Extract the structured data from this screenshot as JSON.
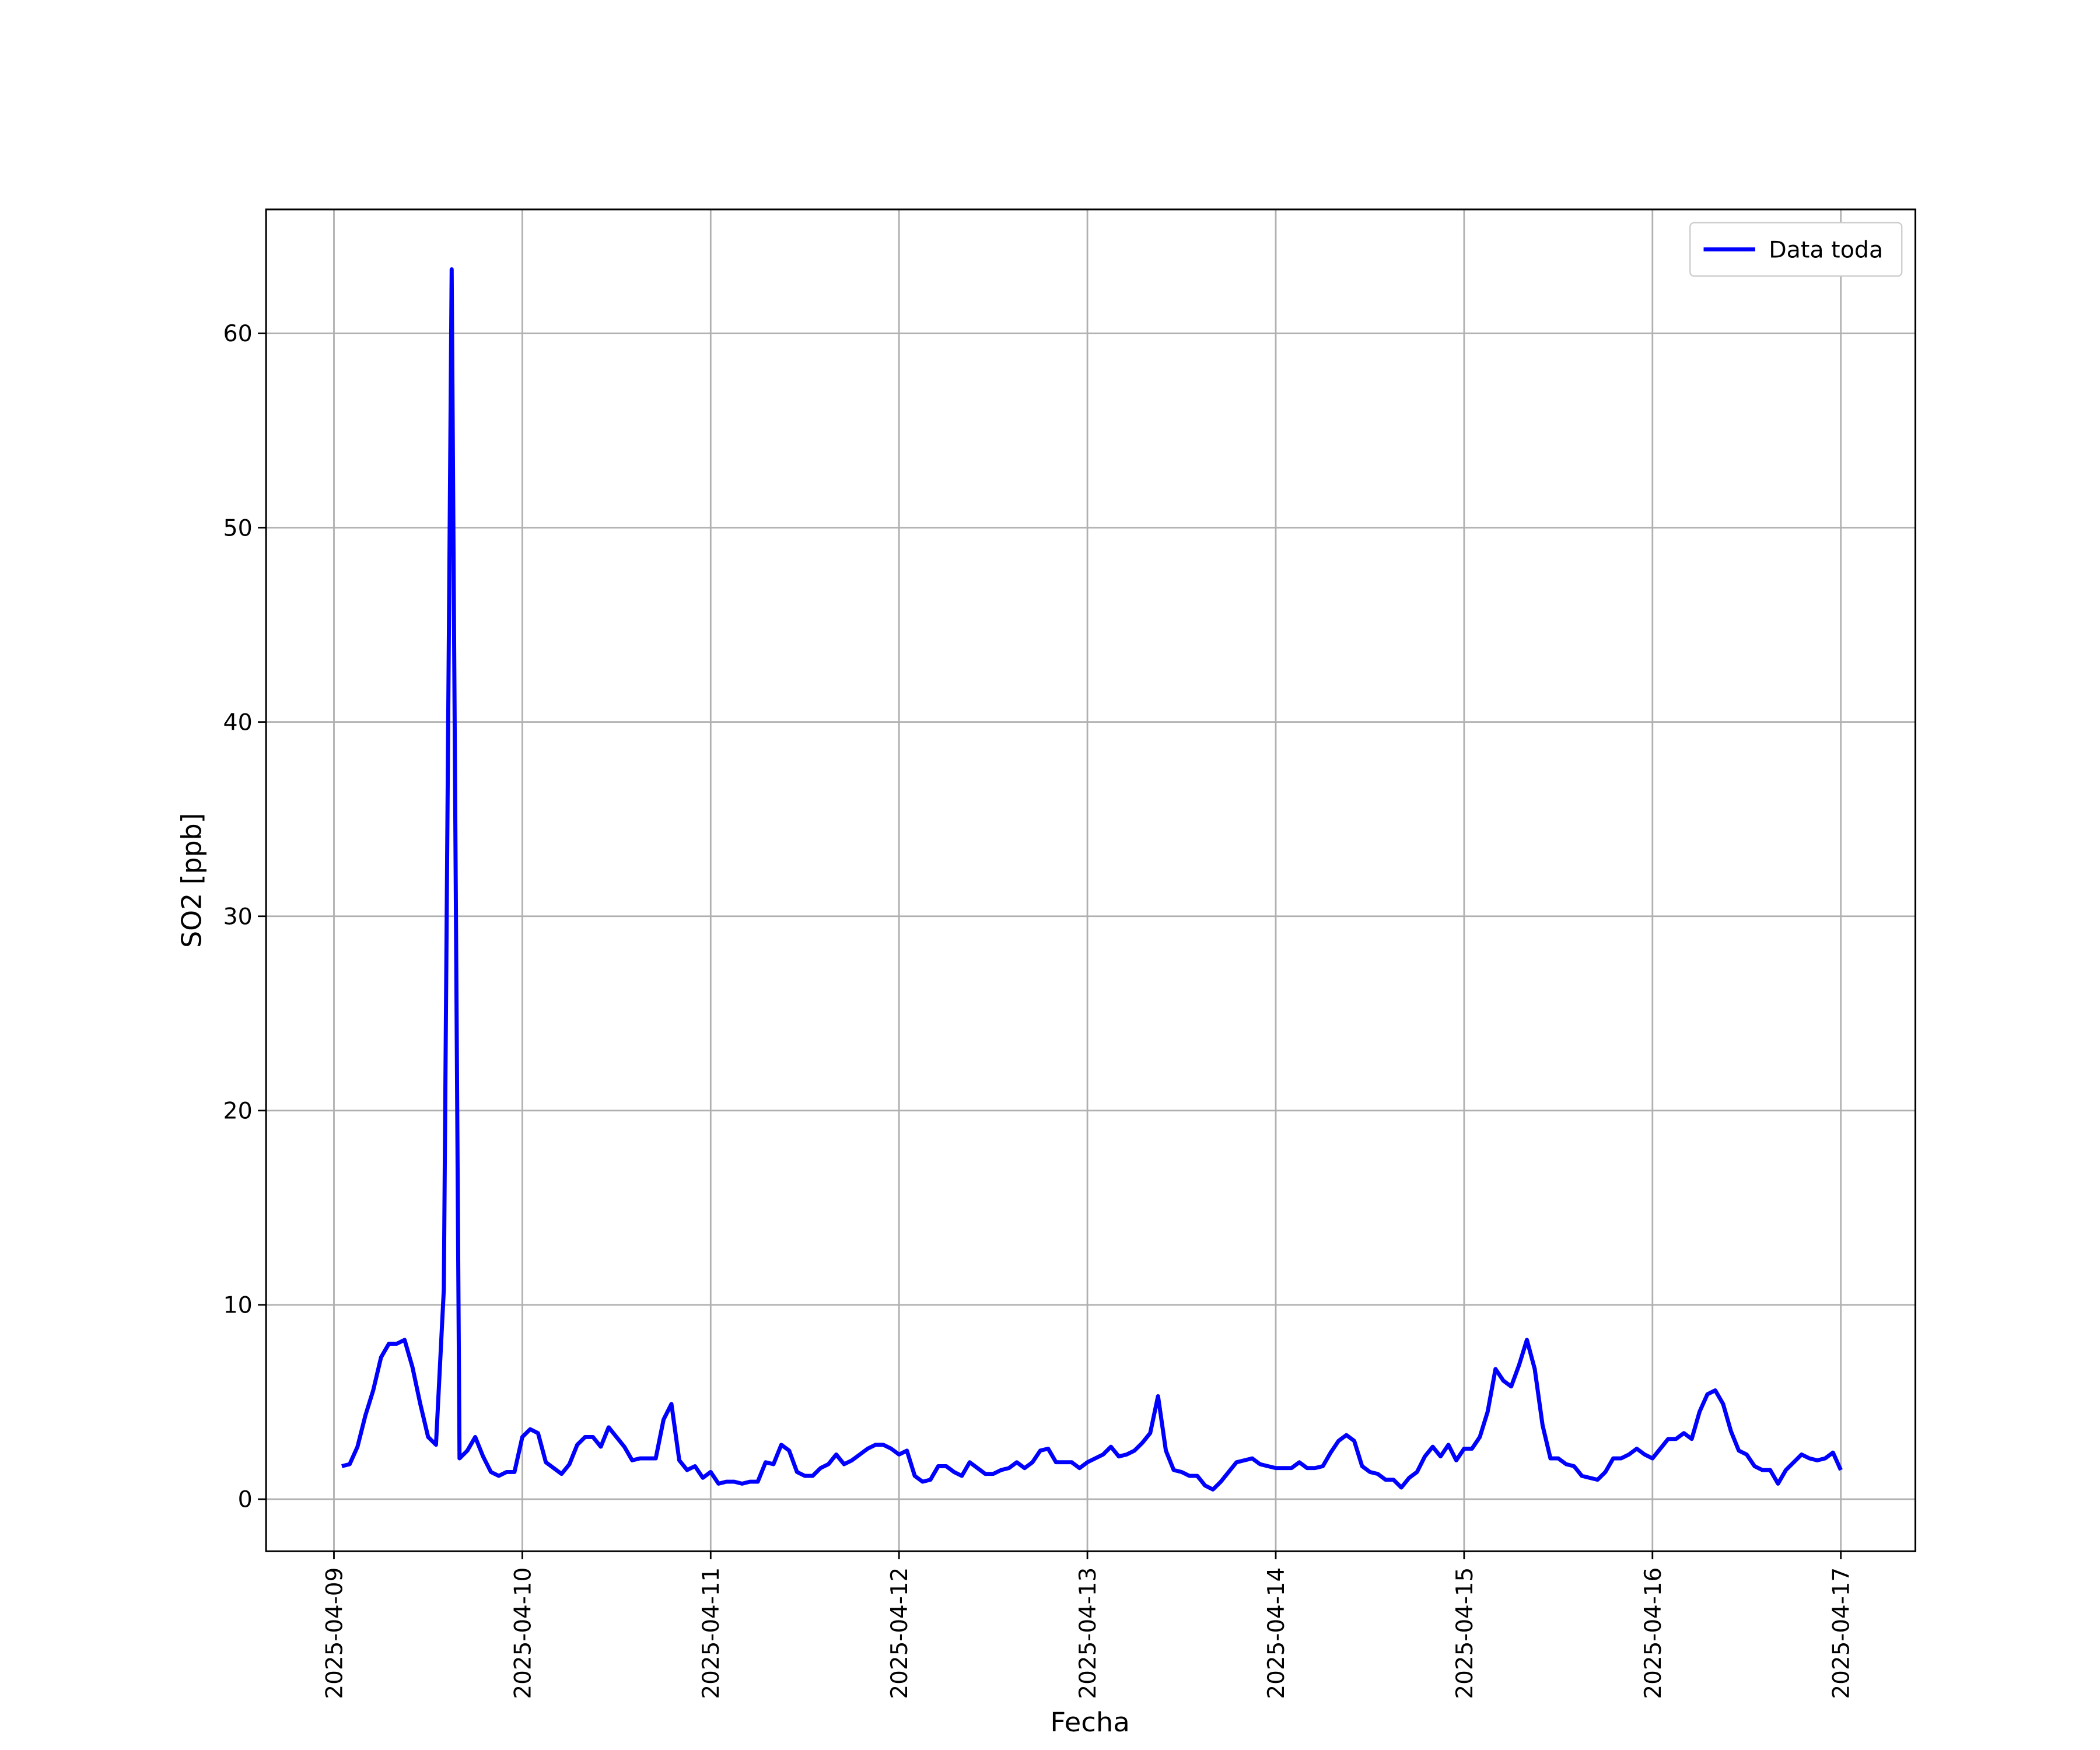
{
  "chart_data": {
    "type": "line",
    "xlabel": "Fecha",
    "ylabel": "SO2 [ppb]",
    "x": [
      "2025-04-09 01:00",
      "2025-04-09 02:00",
      "2025-04-09 03:00",
      "2025-04-09 04:00",
      "2025-04-09 05:00",
      "2025-04-09 06:00",
      "2025-04-09 07:00",
      "2025-04-09 08:00",
      "2025-04-09 09:00",
      "2025-04-09 10:00",
      "2025-04-09 11:00",
      "2025-04-09 12:00",
      "2025-04-09 13:00",
      "2025-04-09 14:00",
      "2025-04-09 15:00",
      "2025-04-09 16:00",
      "2025-04-09 17:00",
      "2025-04-09 18:00",
      "2025-04-09 19:00",
      "2025-04-09 20:00",
      "2025-04-09 21:00",
      "2025-04-09 22:00",
      "2025-04-09 23:00",
      "2025-04-10 00:00",
      "2025-04-10 01:00",
      "2025-04-10 02:00",
      "2025-04-10 03:00",
      "2025-04-10 04:00",
      "2025-04-10 05:00",
      "2025-04-10 06:00",
      "2025-04-10 07:00",
      "2025-04-10 08:00",
      "2025-04-10 09:00",
      "2025-04-10 10:00",
      "2025-04-10 11:00",
      "2025-04-10 12:00",
      "2025-04-10 13:00",
      "2025-04-10 14:00",
      "2025-04-10 15:00",
      "2025-04-10 16:00",
      "2025-04-10 17:00",
      "2025-04-10 18:00",
      "2025-04-10 19:00",
      "2025-04-10 20:00",
      "2025-04-10 21:00",
      "2025-04-10 22:00",
      "2025-04-10 23:00",
      "2025-04-11 00:00",
      "2025-04-11 01:00",
      "2025-04-11 02:00",
      "2025-04-11 03:00",
      "2025-04-11 04:00",
      "2025-04-11 05:00",
      "2025-04-11 06:00",
      "2025-04-11 07:00",
      "2025-04-11 08:00",
      "2025-04-11 09:00",
      "2025-04-11 10:00",
      "2025-04-11 11:00",
      "2025-04-11 12:00",
      "2025-04-11 13:00",
      "2025-04-11 14:00",
      "2025-04-11 15:00",
      "2025-04-11 16:00",
      "2025-04-11 17:00",
      "2025-04-11 18:00",
      "2025-04-11 19:00",
      "2025-04-11 20:00",
      "2025-04-11 21:00",
      "2025-04-11 22:00",
      "2025-04-11 23:00",
      "2025-04-12 00:00",
      "2025-04-12 01:00",
      "2025-04-12 02:00",
      "2025-04-12 03:00",
      "2025-04-12 04:00",
      "2025-04-12 05:00",
      "2025-04-12 06:00",
      "2025-04-12 07:00",
      "2025-04-12 08:00",
      "2025-04-12 09:00",
      "2025-04-12 10:00",
      "2025-04-12 11:00",
      "2025-04-12 12:00",
      "2025-04-12 13:00",
      "2025-04-12 14:00",
      "2025-04-12 15:00",
      "2025-04-12 16:00",
      "2025-04-12 17:00",
      "2025-04-12 18:00",
      "2025-04-12 19:00",
      "2025-04-12 20:00",
      "2025-04-12 21:00",
      "2025-04-12 22:00",
      "2025-04-12 23:00",
      "2025-04-13 00:00",
      "2025-04-13 01:00",
      "2025-04-13 02:00",
      "2025-04-13 03:00",
      "2025-04-13 04:00",
      "2025-04-13 05:00",
      "2025-04-13 06:00",
      "2025-04-13 07:00",
      "2025-04-13 08:00",
      "2025-04-13 09:00",
      "2025-04-13 10:00",
      "2025-04-13 11:00",
      "2025-04-13 12:00",
      "2025-04-13 13:00",
      "2025-04-13 14:00",
      "2025-04-13 15:00",
      "2025-04-13 16:00",
      "2025-04-13 17:00",
      "2025-04-13 18:00",
      "2025-04-13 19:00",
      "2025-04-13 20:00",
      "2025-04-13 21:00",
      "2025-04-13 22:00",
      "2025-04-13 23:00",
      "2025-04-14 00:00",
      "2025-04-14 01:00",
      "2025-04-14 02:00",
      "2025-04-14 03:00",
      "2025-04-14 04:00",
      "2025-04-14 05:00",
      "2025-04-14 06:00",
      "2025-04-14 07:00",
      "2025-04-14 08:00",
      "2025-04-14 09:00",
      "2025-04-14 10:00",
      "2025-04-14 11:00",
      "2025-04-14 12:00",
      "2025-04-14 13:00",
      "2025-04-14 14:00",
      "2025-04-14 15:00",
      "2025-04-14 16:00",
      "2025-04-14 17:00",
      "2025-04-14 18:00",
      "2025-04-14 19:00",
      "2025-04-14 20:00",
      "2025-04-14 21:00",
      "2025-04-14 22:00",
      "2025-04-14 23:00",
      "2025-04-15 00:00",
      "2025-04-15 01:00",
      "2025-04-15 02:00",
      "2025-04-15 03:00",
      "2025-04-15 04:00",
      "2025-04-15 05:00",
      "2025-04-15 06:00",
      "2025-04-15 07:00",
      "2025-04-15 08:00",
      "2025-04-15 09:00",
      "2025-04-15 10:00",
      "2025-04-15 11:00",
      "2025-04-15 12:00",
      "2025-04-15 13:00",
      "2025-04-15 14:00",
      "2025-04-15 15:00",
      "2025-04-15 16:00",
      "2025-04-15 17:00",
      "2025-04-15 18:00",
      "2025-04-15 19:00",
      "2025-04-15 20:00",
      "2025-04-15 21:00",
      "2025-04-15 22:00",
      "2025-04-15 23:00",
      "2025-04-16 00:00",
      "2025-04-16 01:00",
      "2025-04-16 02:00",
      "2025-04-16 03:00",
      "2025-04-16 04:00",
      "2025-04-16 05:00",
      "2025-04-16 06:00",
      "2025-04-16 07:00",
      "2025-04-16 08:00",
      "2025-04-16 09:00",
      "2025-04-16 10:00",
      "2025-04-16 11:00",
      "2025-04-16 12:00",
      "2025-04-16 13:00",
      "2025-04-16 14:00",
      "2025-04-16 15:00",
      "2025-04-16 16:00",
      "2025-04-16 17:00",
      "2025-04-16 18:00",
      "2025-04-16 19:00",
      "2025-04-16 20:00",
      "2025-04-16 21:00",
      "2025-04-16 22:00",
      "2025-04-16 23:00",
      "2025-04-17 00:00"
    ],
    "series": [
      {
        "name": "Data toda",
        "color": "#0000ff",
        "values": [
          1.7,
          1.8,
          2.7,
          4.3,
          5.6,
          7.3,
          8.0,
          8.0,
          8.2,
          6.8,
          4.9,
          3.2,
          2.8,
          10.8,
          63.3,
          2.1,
          2.5,
          3.2,
          2.2,
          1.4,
          1.2,
          1.4,
          1.4,
          3.2,
          3.6,
          3.4,
          1.9,
          1.6,
          1.3,
          1.8,
          2.8,
          3.2,
          3.2,
          2.7,
          3.7,
          3.2,
          2.7,
          2.0,
          2.1,
          2.1,
          2.1,
          4.1,
          4.9,
          2.0,
          1.5,
          1.7,
          1.1,
          1.4,
          0.8,
          0.9,
          0.9,
          0.8,
          0.9,
          0.9,
          1.9,
          1.8,
          2.8,
          2.5,
          1.4,
          1.2,
          1.2,
          1.6,
          1.8,
          2.3,
          1.8,
          2.0,
          2.3,
          2.6,
          2.8,
          2.8,
          2.6,
          2.3,
          2.5,
          1.2,
          0.9,
          1.0,
          1.7,
          1.7,
          1.4,
          1.2,
          1.9,
          1.6,
          1.3,
          1.3,
          1.5,
          1.6,
          1.9,
          1.6,
          1.9,
          2.5,
          2.6,
          1.9,
          1.9,
          1.9,
          1.6,
          1.9,
          2.1,
          2.3,
          2.7,
          2.2,
          2.3,
          2.5,
          2.9,
          3.4,
          5.3,
          2.5,
          1.5,
          1.4,
          1.2,
          1.2,
          0.7,
          0.5,
          0.9,
          1.4,
          1.9,
          2.0,
          2.1,
          1.8,
          1.7,
          1.6,
          1.6,
          1.6,
          1.9,
          1.6,
          1.6,
          1.7,
          2.4,
          3.0,
          3.3,
          3.0,
          1.7,
          1.4,
          1.3,
          1.0,
          1.0,
          0.6,
          1.1,
          1.4,
          2.2,
          2.7,
          2.2,
          2.8,
          2.0,
          2.6,
          2.6,
          3.2,
          4.5,
          6.7,
          6.1,
          5.8,
          6.9,
          8.2,
          6.7,
          3.8,
          2.1,
          2.1,
          1.8,
          1.7,
          1.2,
          1.1,
          1.0,
          1.4,
          2.1,
          2.1,
          2.3,
          2.6,
          2.3,
          2.1,
          2.6,
          3.1,
          3.1,
          3.4,
          3.1,
          4.5,
          5.4,
          5.6,
          4.9,
          3.5,
          2.5,
          2.3,
          1.7,
          1.5,
          1.5,
          0.8,
          1.5,
          1.9,
          2.3,
          2.1,
          2.0,
          2.1,
          2.4,
          1.5
        ]
      }
    ],
    "xlim": [
      "2025-04-08 15:21",
      "2025-04-17 09:30"
    ],
    "xticks": [
      "2025-04-09",
      "2025-04-10",
      "2025-04-11",
      "2025-04-12",
      "2025-04-13",
      "2025-04-14",
      "2025-04-15",
      "2025-04-16",
      "2025-04-17"
    ],
    "ylim": [
      -2.68,
      66.38
    ],
    "yticks": [
      0,
      10,
      20,
      30,
      40,
      50,
      60
    ],
    "grid": true,
    "legend_position": "upper right"
  }
}
